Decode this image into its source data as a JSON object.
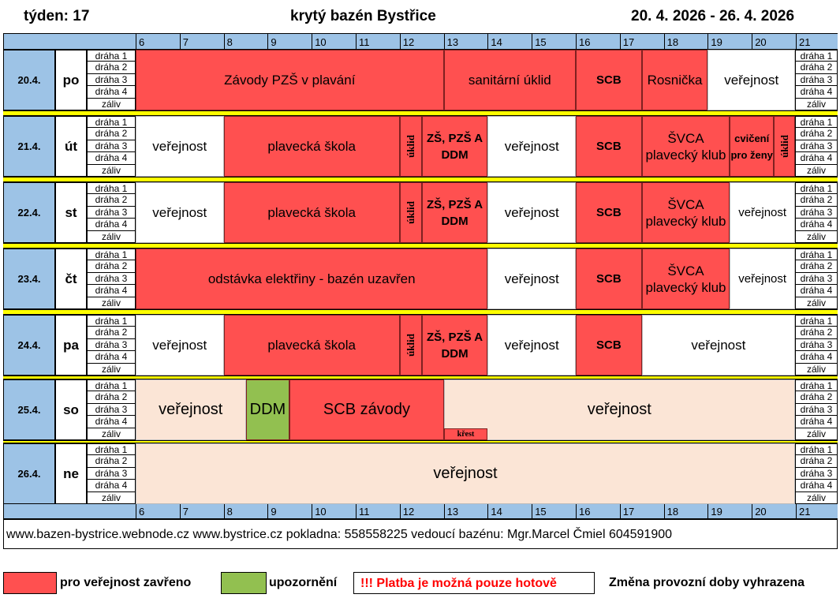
{
  "header": {
    "week": "týden: 17",
    "title": "krytý bazén Bystřice",
    "range": "20. 4. 2026 - 26. 4. 2026"
  },
  "hours": [
    "6",
    "7",
    "8",
    "9",
    "10",
    "11",
    "12",
    "13",
    "14",
    "15",
    "16",
    "17",
    "18",
    "19",
    "20",
    "21"
  ],
  "lanes": [
    "dráha 1",
    "dráha 2",
    "dráha 3",
    "dráha 4",
    "záliv"
  ],
  "days": [
    {
      "date": "20.4.",
      "dow": "po",
      "blocks": [
        {
          "from": 6,
          "to": 13,
          "text": "Závody PZŠ v plavání",
          "style": "red"
        },
        {
          "from": 13,
          "to": 16,
          "text": "sanitární úklid",
          "style": "red"
        },
        {
          "from": 16,
          "to": 17.5,
          "text": "SCB",
          "style": "red",
          "bold": true
        },
        {
          "from": 17.5,
          "to": 19,
          "text": "Rosnička",
          "style": "red"
        },
        {
          "from": 19,
          "to": 21,
          "text": "veřejnost",
          "style": "white"
        }
      ]
    },
    {
      "date": "21.4.",
      "dow": "út",
      "blocks": [
        {
          "from": 6,
          "to": 8,
          "text": "veřejnost",
          "style": "white"
        },
        {
          "from": 8,
          "to": 12,
          "text": "plavecká škola",
          "style": "red"
        },
        {
          "from": 12,
          "to": 12.5,
          "text": "úklid",
          "style": "red",
          "vert": true
        },
        {
          "from": 12.5,
          "to": 14,
          "text": "ZŠ, PZŠ A DDM",
          "style": "red",
          "bold": true
        },
        {
          "from": 14,
          "to": 16,
          "text": "veřejnost",
          "style": "white"
        },
        {
          "from": 16,
          "to": 17.5,
          "text": "SCB",
          "style": "red",
          "bold": true
        },
        {
          "from": 17.5,
          "to": 19.5,
          "text": "ŠVCA plavecký klub",
          "style": "red"
        },
        {
          "from": 19.5,
          "to": 20.5,
          "text": "cvičení pro ženy",
          "style": "red",
          "bold": true,
          "small": true
        },
        {
          "from": 20.5,
          "to": 21,
          "text": "úklid",
          "style": "red",
          "vert": true
        }
      ]
    },
    {
      "date": "22.4.",
      "dow": "st",
      "blocks": [
        {
          "from": 6,
          "to": 8,
          "text": "veřejnost",
          "style": "white"
        },
        {
          "from": 8,
          "to": 12,
          "text": "plavecká škola",
          "style": "red"
        },
        {
          "from": 12,
          "to": 12.5,
          "text": "úklid",
          "style": "red",
          "vert": true
        },
        {
          "from": 12.5,
          "to": 14,
          "text": "ZŠ, PZŠ A DDM",
          "style": "red",
          "bold": true
        },
        {
          "from": 14,
          "to": 16,
          "text": "veřejnost",
          "style": "white"
        },
        {
          "from": 16,
          "to": 17.5,
          "text": "SCB",
          "style": "red",
          "bold": true
        },
        {
          "from": 17.5,
          "to": 19.5,
          "text": "ŠVCA plavecký klub",
          "style": "red"
        },
        {
          "from": 19.5,
          "to": 21,
          "text": "veřejnost",
          "style": "white",
          "small": true
        }
      ]
    },
    {
      "date": "23.4.",
      "dow": "čt",
      "blocks": [
        {
          "from": 6,
          "to": 14,
          "text": "odstávka elektřiny - bazén uzavřen",
          "style": "red"
        },
        {
          "from": 14,
          "to": 16,
          "text": "veřejnost",
          "style": "white"
        },
        {
          "from": 16,
          "to": 17.5,
          "text": "SCB",
          "style": "red",
          "bold": true
        },
        {
          "from": 17.5,
          "to": 19.5,
          "text": "ŠVCA plavecký klub",
          "style": "red"
        },
        {
          "from": 19.5,
          "to": 21,
          "text": "veřejnost",
          "style": "white",
          "small": true
        }
      ]
    },
    {
      "date": "24.4.",
      "dow": "pa",
      "blocks": [
        {
          "from": 6,
          "to": 8,
          "text": "veřejnost",
          "style": "white"
        },
        {
          "from": 8,
          "to": 12,
          "text": "plavecká škola",
          "style": "red"
        },
        {
          "from": 12,
          "to": 12.5,
          "text": "úklid",
          "style": "red",
          "vert": true
        },
        {
          "from": 12.5,
          "to": 14,
          "text": "ZŠ, PZŠ A DDM",
          "style": "red",
          "bold": true
        },
        {
          "from": 14,
          "to": 16,
          "text": "veřejnost",
          "style": "white"
        },
        {
          "from": 16,
          "to": 17.5,
          "text": "SCB",
          "style": "red",
          "bold": true
        },
        {
          "from": 17.5,
          "to": 21,
          "text": "veřejnost",
          "style": "white"
        }
      ]
    },
    {
      "date": "25.4.",
      "dow": "so",
      "blocks": [
        {
          "from": 6,
          "to": 8.5,
          "text": "veřejnost",
          "style": "peach",
          "big": true
        },
        {
          "from": 8.5,
          "to": 9.5,
          "text": "DDM",
          "style": "green",
          "big": true
        },
        {
          "from": 9.5,
          "to": 13,
          "text": "SCB závody",
          "style": "red",
          "big": true
        },
        {
          "from": 13,
          "to": 21,
          "text": "veřejnost",
          "style": "peach",
          "big": true
        },
        {
          "from": 13,
          "to": 14,
          "text": "křest",
          "style": "red",
          "krest": true
        }
      ]
    },
    {
      "date": "26.4.",
      "dow": "ne",
      "blocks": [
        {
          "from": 6,
          "to": 21,
          "text": "veřejnost",
          "style": "peach",
          "big": true
        }
      ]
    }
  ],
  "footer": "www.bazen-bystrice.webnode.cz   www.bystrice.cz   pokladna: 558558225   vedoucí bazénu: Mgr.Marcel Čmiel  604591900",
  "legend": {
    "closed": "pro veřejnost zavřeno",
    "warning": "upozornění",
    "payment": "!!! Platba je možná pouze hotově",
    "change": "Změna provozní doby vyhrazena",
    "colors": {
      "closed": "#ff5050",
      "warning": "#92c050",
      "payment_text": "#ff0000"
    }
  }
}
